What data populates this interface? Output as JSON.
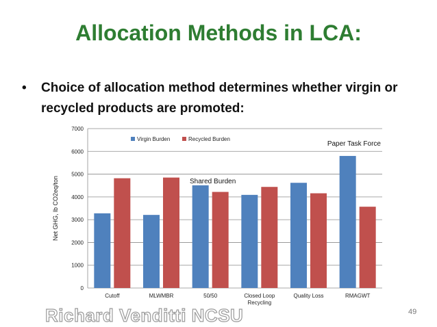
{
  "slide": {
    "title": "Allocation Methods in LCA:",
    "bullet_symbol": "•",
    "bullet_text": "Choice of allocation method determines whether virgin or recycled products are promoted:",
    "watermark": "Richard Venditti   NCSU",
    "page_number": "49"
  },
  "chart_data": {
    "type": "bar",
    "ylabel": "Net GHG, lb CO2eq/ton",
    "xlabel": "",
    "ylim": [
      0,
      7000
    ],
    "yticks": [
      0,
      1000,
      2000,
      3000,
      4000,
      5000,
      6000,
      7000
    ],
    "grid": true,
    "legend_position": "top",
    "categories": [
      [
        "Cutoff"
      ],
      [
        "MLWMBR"
      ],
      [
        "50/50"
      ],
      [
        "Closed Loop",
        "Recycling"
      ],
      [
        "Quality Loss"
      ],
      [
        "RMAGWT"
      ]
    ],
    "series": [
      {
        "name": "Virgin Burden",
        "color": "#4f81bd",
        "values": [
          3280,
          3210,
          4510,
          4090,
          4620,
          5800
        ]
      },
      {
        "name": "Recycled Burden",
        "color": "#c0504d",
        "values": [
          4820,
          4850,
          4220,
          4440,
          4160,
          3570
        ]
      }
    ],
    "annotations": [
      {
        "text": "Shared Burden",
        "category_index": 2
      },
      {
        "text": "Paper Task Force",
        "category_index": 5
      }
    ]
  }
}
